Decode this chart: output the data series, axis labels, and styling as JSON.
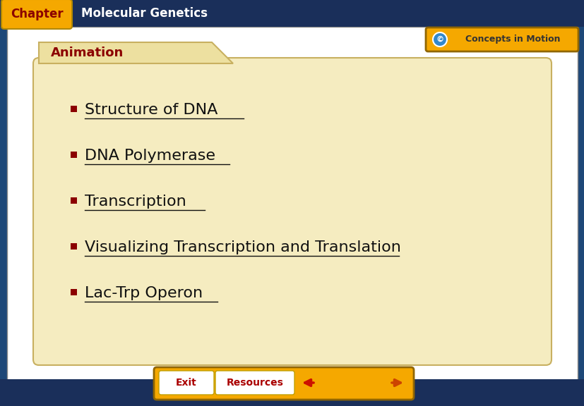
{
  "bg_color": "#1e4878",
  "header_bar_color": "#1a2f5a",
  "chapter_tab_color": "#f5a800",
  "chapter_text": "Chapter",
  "chapter_text_color": "#8b0000",
  "header_title": "Molecular Genetics",
  "header_title_color": "#ffffff",
  "folder_body_color": "#f5ecc0",
  "folder_tab_color": "#ede0a0",
  "folder_border_color": "#c8b060",
  "animation_label": "Animation",
  "animation_color": "#8b0000",
  "bullet_color": "#8b0000",
  "link_color": "#111111",
  "items": [
    "Structure of DNA",
    "DNA Polymerase",
    "Transcription",
    "Visualizing Transcription and Translation",
    "Lac-Trp Operon"
  ],
  "exit_btn_color": "#f5a800",
  "exit_text": "Exit",
  "resources_btn_color": "#f5a800",
  "resources_text": "Resources",
  "concepts_text": "Concepts in Motion",
  "concepts_bg": "#f5a800",
  "white_bg": "#ffffff",
  "bottom_bar_color": "#1a2f5a",
  "item_y_top": [
    155,
    220,
    285,
    350,
    415
  ],
  "underline_widths": [
    225,
    205,
    170,
    445,
    188
  ],
  "item_fontsize": 16,
  "header_fontsize": 12,
  "animation_fontsize": 13,
  "bullet_size": 9
}
